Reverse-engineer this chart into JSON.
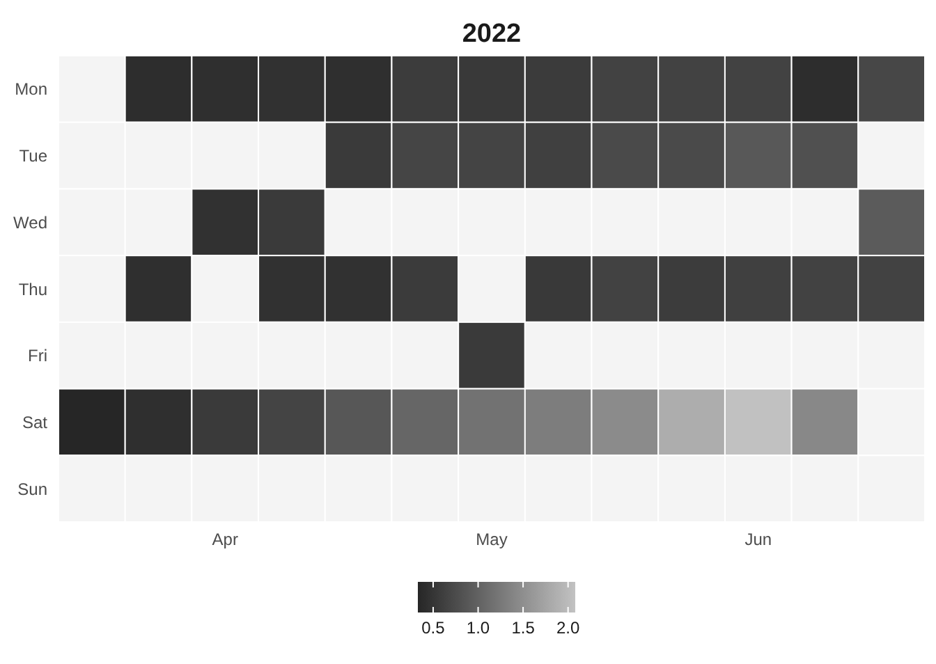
{
  "chart_data": {
    "type": "heatmap",
    "title": "2022",
    "categories": [
      null,
      null,
      "Apr",
      null,
      null,
      null,
      "May",
      null,
      null,
      null,
      "Jun",
      null,
      null
    ],
    "y_categories": [
      "Mon",
      "Tue",
      "Wed",
      "Thu",
      "Fri",
      "Sat",
      "Sun"
    ],
    "cells": [
      [
        null,
        0.41,
        0.43,
        0.45,
        0.43,
        0.58,
        0.54,
        0.57,
        0.64,
        0.64,
        0.64,
        0.41,
        0.7
      ],
      [
        null,
        null,
        null,
        null,
        0.55,
        0.68,
        0.67,
        0.62,
        0.73,
        0.73,
        0.89,
        0.8,
        null
      ],
      [
        null,
        null,
        0.45,
        0.55,
        null,
        null,
        null,
        null,
        null,
        null,
        null,
        null,
        0.92
      ],
      [
        null,
        0.43,
        null,
        0.45,
        0.45,
        0.57,
        null,
        0.54,
        0.64,
        0.58,
        0.62,
        0.64,
        0.64
      ],
      [
        null,
        null,
        null,
        null,
        null,
        null,
        0.55,
        null,
        null,
        null,
        null,
        null,
        null
      ],
      [
        0.33,
        0.43,
        0.55,
        0.67,
        0.88,
        1.05,
        1.18,
        1.31,
        1.46,
        1.84,
        2.07,
        1.43,
        null
      ],
      [
        null,
        null,
        null,
        null,
        null,
        null,
        null,
        null,
        null,
        null,
        null,
        null,
        null
      ]
    ],
    "colors": [
      "#262626",
      "#c2c2c2"
    ],
    "clim": [
      0.33,
      2.08
    ],
    "cticks": [
      0.5,
      {
        "value": 1,
        "label": "1.0"
      },
      1.5,
      {
        "value": 2,
        "label": "2.0"
      }
    ]
  }
}
